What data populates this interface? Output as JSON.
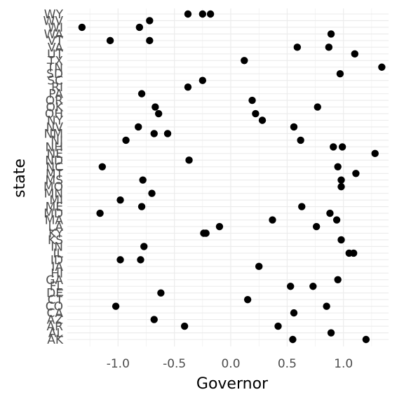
{
  "chart_data": {
    "type": "scatter",
    "xlabel": "Governor",
    "ylabel": "state",
    "xlim": [
      -1.45,
      1.4
    ],
    "x_ticks": [
      -1.0,
      -0.5,
      0.0,
      0.5,
      1.0
    ],
    "x_tick_labels": [
      "-1.0",
      "-0.5",
      "0.0",
      "0.5",
      "1.0"
    ],
    "categories": [
      "AK",
      "AL",
      "AR",
      "AZ",
      "CA",
      "CO",
      "CT",
      "DE",
      "FL",
      "GA",
      "HI",
      "IA",
      "ID",
      "IL",
      "IN",
      "KS",
      "KY",
      "LA",
      "MA",
      "MD",
      "ME",
      "MI",
      "MN",
      "MO",
      "MS",
      "MT",
      "NC",
      "ND",
      "NE",
      "NH",
      "NJ",
      "NM",
      "NV",
      "NY",
      "OH",
      "OK",
      "OR",
      "PA",
      "RI",
      "SC",
      "SD",
      "TN",
      "TX",
      "UT",
      "VA",
      "VT",
      "WA",
      "WI",
      "WV",
      "WY"
    ],
    "grid": true,
    "legend": "none",
    "point_color": "#000000",
    "points": [
      {
        "x": 0.55,
        "y": "AK"
      },
      {
        "x": 1.2,
        "y": "AK"
      },
      {
        "x": 0.89,
        "y": "AL"
      },
      {
        "x": -0.41,
        "y": "AR"
      },
      {
        "x": 0.42,
        "y": "AR"
      },
      {
        "x": -0.68,
        "y": "AZ"
      },
      {
        "x": 0.56,
        "y": "CA"
      },
      {
        "x": -1.02,
        "y": "CO"
      },
      {
        "x": 0.85,
        "y": "CO"
      },
      {
        "x": 0.15,
        "y": "CT"
      },
      {
        "x": -0.62,
        "y": "DE"
      },
      {
        "x": 0.53,
        "y": "FL"
      },
      {
        "x": 0.73,
        "y": "FL"
      },
      {
        "x": 0.95,
        "y": "GA"
      },
      {
        "x": 0.25,
        "y": "IA"
      },
      {
        "x": -0.98,
        "y": "ID"
      },
      {
        "x": -0.8,
        "y": "ID"
      },
      {
        "x": 1.05,
        "y": "IL"
      },
      {
        "x": 1.09,
        "y": "IL"
      },
      {
        "x": -0.77,
        "y": "IN"
      },
      {
        "x": 0.98,
        "y": "KS"
      },
      {
        "x": -0.22,
        "y": "KY"
      },
      {
        "x": -0.24,
        "y": "KY"
      },
      {
        "x": -0.1,
        "y": "LA"
      },
      {
        "x": 0.76,
        "y": "LA"
      },
      {
        "x": 0.37,
        "y": "MA"
      },
      {
        "x": 0.94,
        "y": "MA"
      },
      {
        "x": -1.16,
        "y": "MD"
      },
      {
        "x": 0.88,
        "y": "MD"
      },
      {
        "x": -0.79,
        "y": "ME"
      },
      {
        "x": 0.63,
        "y": "ME"
      },
      {
        "x": -0.98,
        "y": "MI"
      },
      {
        "x": -0.7,
        "y": "MN"
      },
      {
        "x": 0.98,
        "y": "MO"
      },
      {
        "x": -0.78,
        "y": "MS"
      },
      {
        "x": 0.98,
        "y": "MS"
      },
      {
        "x": 1.11,
        "y": "MT"
      },
      {
        "x": -1.14,
        "y": "NC"
      },
      {
        "x": 0.95,
        "y": "NC"
      },
      {
        "x": -0.37,
        "y": "ND"
      },
      {
        "x": 1.28,
        "y": "NE"
      },
      {
        "x": 0.91,
        "y": "NH"
      },
      {
        "x": 0.99,
        "y": "NH"
      },
      {
        "x": -0.93,
        "y": "NJ"
      },
      {
        "x": 0.62,
        "y": "NJ"
      },
      {
        "x": -0.68,
        "y": "NM"
      },
      {
        "x": -0.56,
        "y": "NM"
      },
      {
        "x": -0.82,
        "y": "NV"
      },
      {
        "x": 0.56,
        "y": "NV"
      },
      {
        "x": 0.28,
        "y": "NY"
      },
      {
        "x": -0.64,
        "y": "OH"
      },
      {
        "x": 0.22,
        "y": "OH"
      },
      {
        "x": -0.67,
        "y": "OK"
      },
      {
        "x": 0.77,
        "y": "OK"
      },
      {
        "x": 0.19,
        "y": "OR"
      },
      {
        "x": -0.79,
        "y": "PA"
      },
      {
        "x": -0.38,
        "y": "RI"
      },
      {
        "x": -0.25,
        "y": "SC"
      },
      {
        "x": 0.97,
        "y": "SD"
      },
      {
        "x": 1.34,
        "y": "TN"
      },
      {
        "x": 0.12,
        "y": "TX"
      },
      {
        "x": 1.1,
        "y": "UT"
      },
      {
        "x": 0.59,
        "y": "VA"
      },
      {
        "x": 0.87,
        "y": "VA"
      },
      {
        "x": -1.07,
        "y": "VT"
      },
      {
        "x": -0.72,
        "y": "VT"
      },
      {
        "x": 0.89,
        "y": "WA"
      },
      {
        "x": -1.32,
        "y": "WI"
      },
      {
        "x": -0.81,
        "y": "WI"
      },
      {
        "x": -0.72,
        "y": "WV"
      },
      {
        "x": -0.38,
        "y": "WY"
      },
      {
        "x": -0.18,
        "y": "WY"
      },
      {
        "x": -0.25,
        "y": "WY"
      }
    ]
  }
}
